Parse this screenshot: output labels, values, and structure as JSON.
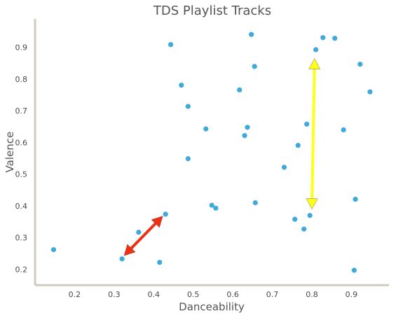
{
  "chart_data": {
    "type": "scatter",
    "title": "TDS Playlist Tracks",
    "xlabel": "Danceability",
    "ylabel": "Valence",
    "xlim": [
      0.1,
      0.995
    ],
    "ylim": [
      0.15,
      0.99
    ],
    "xticks": [
      "0.2",
      "0.3",
      "0.4",
      "0.5",
      "0.6",
      "0.7",
      "0.8",
      "0.9"
    ],
    "yticks": [
      "0.2",
      "0.3",
      "0.4",
      "0.5",
      "0.6",
      "0.7",
      "0.8",
      "0.9"
    ],
    "grid": false,
    "series": [
      {
        "color": "#3fa9dc",
        "points": [
          [
            0.147,
            0.262
          ],
          [
            0.32,
            0.233
          ],
          [
            0.362,
            0.317
          ],
          [
            0.415,
            0.222
          ],
          [
            0.43,
            0.374
          ],
          [
            0.443,
            0.909
          ],
          [
            0.47,
            0.781
          ],
          [
            0.487,
            0.714
          ],
          [
            0.487,
            0.549
          ],
          [
            0.532,
            0.643
          ],
          [
            0.547,
            0.402
          ],
          [
            0.557,
            0.393
          ],
          [
            0.617,
            0.766
          ],
          [
            0.63,
            0.622
          ],
          [
            0.637,
            0.648
          ],
          [
            0.647,
            0.941
          ],
          [
            0.655,
            0.84
          ],
          [
            0.657,
            0.41
          ],
          [
            0.73,
            0.522
          ],
          [
            0.757,
            0.358
          ],
          [
            0.765,
            0.591
          ],
          [
            0.78,
            0.327
          ],
          [
            0.787,
            0.658
          ],
          [
            0.795,
            0.37
          ],
          [
            0.81,
            0.893
          ],
          [
            0.828,
            0.931
          ],
          [
            0.858,
            0.929
          ],
          [
            0.88,
            0.64
          ],
          [
            0.907,
            0.197
          ],
          [
            0.91,
            0.421
          ],
          [
            0.922,
            0.847
          ],
          [
            0.947,
            0.76
          ]
        ]
      }
    ],
    "annotations": [
      {
        "type": "double-arrow",
        "color": "#f03016",
        "from": [
          0.325,
          0.243
        ],
        "to": [
          0.423,
          0.368
        ]
      },
      {
        "type": "double-arrow",
        "color": "#ffff1a",
        "from": [
          0.807,
          0.865
        ],
        "to": [
          0.8,
          0.39
        ]
      }
    ]
  }
}
